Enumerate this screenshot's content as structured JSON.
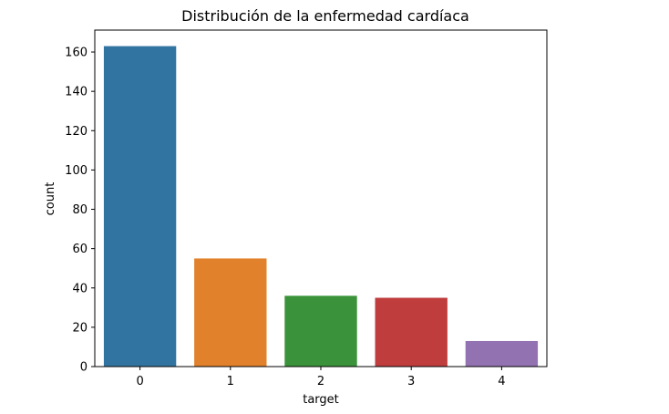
{
  "chart_data": {
    "type": "bar",
    "title": "Distribución de la enfermedad cardíaca",
    "xlabel": "target",
    "ylabel": "count",
    "categories": [
      "0",
      "1",
      "2",
      "3",
      "4"
    ],
    "values": [
      163,
      55,
      36,
      35,
      13
    ],
    "colors": [
      "#3274a1",
      "#e1812c",
      "#3a923a",
      "#c03d3e",
      "#9372b2"
    ],
    "ylim": [
      0,
      171.15
    ],
    "yticks": [
      0,
      20,
      40,
      60,
      80,
      100,
      120,
      140,
      160
    ],
    "grid": false,
    "legend": "none"
  }
}
